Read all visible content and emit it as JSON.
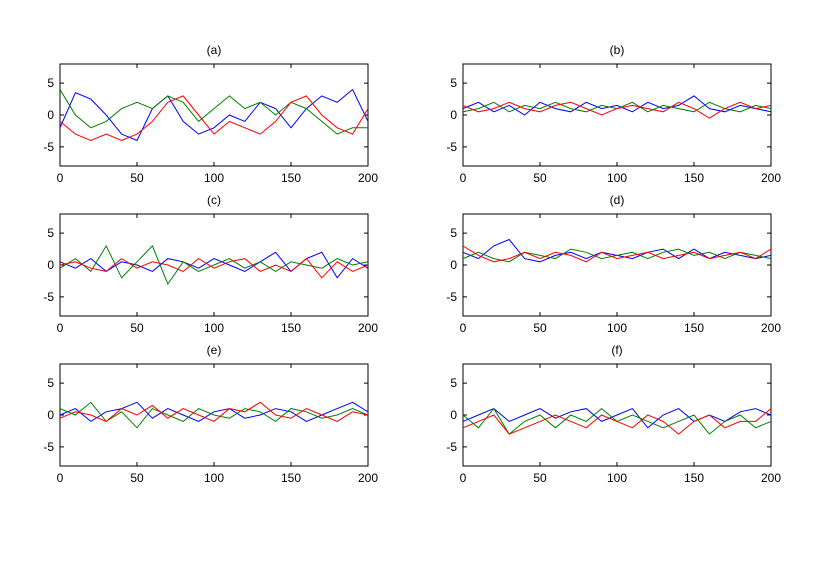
{
  "colors": {
    "blue": "#0000ff",
    "green": "#008000",
    "red": "#ff0000",
    "axis": "#000000"
  },
  "chart_data": [
    {
      "type": "line",
      "title": "(a)",
      "xlim": [
        0,
        200
      ],
      "ylim": [
        -8,
        8
      ],
      "xticks": [
        "0",
        "50",
        "100",
        "150",
        "200"
      ],
      "yticks": [
        "5",
        "0",
        "-5"
      ],
      "xlabel": "",
      "ylabel": "",
      "series": [
        {
          "color": "blue",
          "x": [
            0,
            10,
            20,
            30,
            40,
            50,
            60,
            70,
            80,
            90,
            100,
            110,
            120,
            130,
            140,
            150,
            160,
            170,
            180,
            190,
            200
          ],
          "values": [
            -2,
            3.5,
            2.5,
            0,
            -3,
            -4,
            1,
            3,
            -1,
            -3,
            -2,
            0,
            -1,
            2,
            1,
            -2,
            1,
            3,
            2,
            4,
            -1
          ]
        },
        {
          "color": "green",
          "x": [
            0,
            10,
            20,
            30,
            40,
            50,
            60,
            70,
            80,
            90,
            100,
            110,
            120,
            130,
            140,
            150,
            160,
            170,
            180,
            190,
            200
          ],
          "values": [
            4,
            0,
            -2,
            -1,
            1,
            2,
            1,
            3,
            2,
            -1,
            1,
            3,
            1,
            2,
            0,
            2,
            1,
            -1,
            -3,
            -2,
            -2
          ]
        },
        {
          "color": "red",
          "x": [
            0,
            10,
            20,
            30,
            40,
            50,
            60,
            70,
            80,
            90,
            100,
            110,
            120,
            130,
            140,
            150,
            160,
            170,
            180,
            190,
            200
          ],
          "values": [
            -1,
            -3,
            -4,
            -3,
            -4,
            -3,
            -1,
            2,
            3,
            0,
            -3,
            -1,
            -2,
            -3,
            -1,
            2,
            3,
            0,
            -2,
            -3,
            1
          ]
        }
      ]
    },
    {
      "type": "line",
      "title": "(b)",
      "xlim": [
        0,
        200
      ],
      "ylim": [
        -8,
        8
      ],
      "xticks": [
        "0",
        "50",
        "100",
        "150",
        "200"
      ],
      "yticks": [
        "5",
        "0",
        "-5"
      ],
      "xlabel": "",
      "ylabel": "",
      "series": [
        {
          "color": "blue",
          "x": [
            0,
            10,
            20,
            30,
            40,
            50,
            60,
            70,
            80,
            90,
            100,
            110,
            120,
            130,
            140,
            150,
            160,
            170,
            180,
            190,
            200
          ],
          "values": [
            1,
            2,
            0.5,
            1.5,
            0,
            2,
            1,
            0.5,
            2,
            1,
            1.5,
            0.5,
            2,
            1,
            1.5,
            3,
            1,
            0.5,
            1.5,
            1,
            0.5
          ]
        },
        {
          "color": "green",
          "x": [
            0,
            10,
            20,
            30,
            40,
            50,
            60,
            70,
            80,
            90,
            100,
            110,
            120,
            130,
            140,
            150,
            160,
            170,
            180,
            190,
            200
          ],
          "values": [
            0.5,
            1,
            2,
            0.5,
            1.5,
            1,
            2,
            1,
            0.5,
            1.5,
            1,
            2,
            0.5,
            1.5,
            1,
            0.5,
            2,
            1,
            0.5,
            1.5,
            1
          ]
        },
        {
          "color": "red",
          "x": [
            0,
            10,
            20,
            30,
            40,
            50,
            60,
            70,
            80,
            90,
            100,
            110,
            120,
            130,
            140,
            150,
            160,
            170,
            180,
            190,
            200
          ],
          "values": [
            1.5,
            0.5,
            1,
            2,
            1,
            0.5,
            1.5,
            2,
            1,
            0,
            1,
            1.5,
            1,
            0.5,
            2,
            1,
            -0.5,
            1,
            2,
            1,
            1.5
          ]
        }
      ]
    },
    {
      "type": "line",
      "title": "(c)",
      "xlim": [
        0,
        200
      ],
      "ylim": [
        -8,
        8
      ],
      "xticks": [
        "0",
        "50",
        "100",
        "150",
        "200"
      ],
      "yticks": [
        "5",
        "0",
        "-5"
      ],
      "xlabel": "",
      "ylabel": "",
      "series": [
        {
          "color": "blue",
          "x": [
            0,
            10,
            20,
            30,
            40,
            50,
            60,
            70,
            80,
            90,
            100,
            110,
            120,
            130,
            140,
            150,
            160,
            170,
            180,
            190,
            200
          ],
          "values": [
            0.5,
            -0.5,
            1,
            -1,
            0.5,
            0,
            -1,
            1,
            0.5,
            -0.5,
            1,
            0,
            -1,
            0.5,
            2,
            -1,
            1,
            2,
            -2,
            1,
            -0.5
          ]
        },
        {
          "color": "green",
          "x": [
            0,
            10,
            20,
            30,
            40,
            50,
            60,
            70,
            80,
            90,
            100,
            110,
            120,
            130,
            140,
            150,
            160,
            170,
            180,
            190,
            200
          ],
          "values": [
            -0.5,
            1,
            -1,
            3,
            -2,
            0.5,
            3,
            -3,
            0.5,
            -1,
            0,
            1,
            -0.5,
            0.5,
            -1,
            0.5,
            0,
            -0.5,
            1,
            0,
            0.5
          ]
        },
        {
          "color": "red",
          "x": [
            0,
            10,
            20,
            30,
            40,
            50,
            60,
            70,
            80,
            90,
            100,
            110,
            120,
            130,
            140,
            150,
            160,
            170,
            180,
            190,
            200
          ],
          "values": [
            0,
            0.5,
            -0.5,
            -1,
            1,
            -0.5,
            0.5,
            0,
            -1,
            1,
            -0.5,
            0.5,
            1,
            -1,
            0,
            -1,
            1,
            -2,
            0.5,
            -1,
            0
          ]
        }
      ]
    },
    {
      "type": "line",
      "title": "(d)",
      "xlim": [
        0,
        200
      ],
      "ylim": [
        -8,
        8
      ],
      "xticks": [
        "0",
        "50",
        "100",
        "150",
        "200"
      ],
      "yticks": [
        "5",
        "0",
        "-5"
      ],
      "xlabel": "",
      "ylabel": "",
      "series": [
        {
          "color": "blue",
          "x": [
            0,
            10,
            20,
            30,
            40,
            50,
            60,
            70,
            80,
            90,
            100,
            110,
            120,
            130,
            140,
            150,
            160,
            170,
            180,
            190,
            200
          ],
          "values": [
            2,
            1,
            3,
            4,
            1,
            0.5,
            1.5,
            2,
            1,
            2,
            1.5,
            1,
            2,
            2.5,
            1,
            2.5,
            1,
            2,
            1.5,
            1,
            1.5
          ]
        },
        {
          "color": "green",
          "x": [
            0,
            10,
            20,
            30,
            40,
            50,
            60,
            70,
            80,
            90,
            100,
            110,
            120,
            130,
            140,
            150,
            160,
            170,
            180,
            190,
            200
          ],
          "values": [
            1,
            2,
            1,
            0.5,
            2,
            1.5,
            1,
            2.5,
            2,
            1,
            1.5,
            2,
            1,
            2,
            2.5,
            1.5,
            2,
            1,
            2,
            1.5,
            1
          ]
        },
        {
          "color": "red",
          "x": [
            0,
            10,
            20,
            30,
            40,
            50,
            60,
            70,
            80,
            90,
            100,
            110,
            120,
            130,
            140,
            150,
            160,
            170,
            180,
            190,
            200
          ],
          "values": [
            3,
            1.5,
            0.5,
            1,
            2,
            1,
            2,
            1.5,
            0.5,
            2,
            1,
            1.5,
            2,
            1,
            1.5,
            2,
            1,
            1.5,
            2,
            1,
            2.5
          ]
        }
      ]
    },
    {
      "type": "line",
      "title": "(e)",
      "xlim": [
        0,
        200
      ],
      "ylim": [
        -8,
        8
      ],
      "xticks": [
        "0",
        "50",
        "100",
        "150",
        "200"
      ],
      "yticks": [
        "5",
        "0",
        "-5"
      ],
      "xlabel": "",
      "ylabel": "",
      "series": [
        {
          "color": "blue",
          "x": [
            0,
            10,
            20,
            30,
            40,
            50,
            60,
            70,
            80,
            90,
            100,
            110,
            120,
            130,
            140,
            150,
            160,
            170,
            180,
            190,
            200
          ],
          "values": [
            0,
            1,
            -1,
            0.5,
            1,
            2,
            -0.5,
            1,
            0,
            -1,
            0.5,
            1,
            -0.5,
            0,
            1,
            0.5,
            -1,
            0,
            1,
            2,
            0.5
          ]
        },
        {
          "color": "green",
          "x": [
            0,
            10,
            20,
            30,
            40,
            50,
            60,
            70,
            80,
            90,
            100,
            110,
            120,
            130,
            140,
            150,
            160,
            170,
            180,
            190,
            200
          ],
          "values": [
            1,
            0,
            2,
            -1,
            0.5,
            -2,
            1,
            0,
            -1,
            1,
            0,
            -0.5,
            1,
            0.5,
            -1,
            1,
            0.5,
            -0.5,
            0,
            1,
            0
          ]
        },
        {
          "color": "red",
          "x": [
            0,
            10,
            20,
            30,
            40,
            50,
            60,
            70,
            80,
            90,
            100,
            110,
            120,
            130,
            140,
            150,
            160,
            170,
            180,
            190,
            200
          ],
          "values": [
            -0.5,
            0.5,
            0,
            -1,
            1,
            0,
            1.5,
            -0.5,
            1,
            0,
            -1,
            1,
            0.5,
            2,
            0,
            -0.5,
            1,
            0,
            -1,
            0.5,
            0
          ]
        }
      ]
    },
    {
      "type": "line",
      "title": "(f)",
      "xlim": [
        0,
        200
      ],
      "ylim": [
        -8,
        8
      ],
      "xticks": [
        "0",
        "50",
        "100",
        "150",
        "200"
      ],
      "yticks": [
        "5",
        "0",
        "-5"
      ],
      "xlabel": "",
      "ylabel": "",
      "series": [
        {
          "color": "blue",
          "x": [
            0,
            10,
            20,
            30,
            40,
            50,
            60,
            70,
            80,
            90,
            100,
            110,
            120,
            130,
            140,
            150,
            160,
            170,
            180,
            190,
            200
          ],
          "values": [
            -1,
            0,
            1,
            -1,
            0,
            1,
            -0.5,
            0.5,
            1,
            -1,
            0,
            1,
            -2,
            0,
            1,
            -1,
            0,
            -1,
            0.5,
            1,
            0
          ]
        },
        {
          "color": "green",
          "x": [
            0,
            10,
            20,
            30,
            40,
            50,
            60,
            70,
            80,
            90,
            100,
            110,
            120,
            130,
            140,
            150,
            160,
            170,
            180,
            190,
            200
          ],
          "values": [
            0,
            -2,
            1,
            -3,
            -1,
            0,
            -2,
            0,
            -1,
            1,
            -1,
            0,
            -1,
            -2,
            -1,
            0,
            -3,
            -1,
            0,
            -2,
            -1
          ]
        },
        {
          "color": "red",
          "x": [
            0,
            10,
            20,
            30,
            40,
            50,
            60,
            70,
            80,
            90,
            100,
            110,
            120,
            130,
            140,
            150,
            160,
            170,
            180,
            190,
            200
          ],
          "values": [
            -2,
            -1,
            0,
            -3,
            -2,
            -1,
            0,
            -1,
            -2,
            0,
            -1,
            -2,
            0,
            -1,
            -3,
            -1,
            0,
            -2,
            -1,
            -1,
            1
          ]
        }
      ]
    }
  ]
}
